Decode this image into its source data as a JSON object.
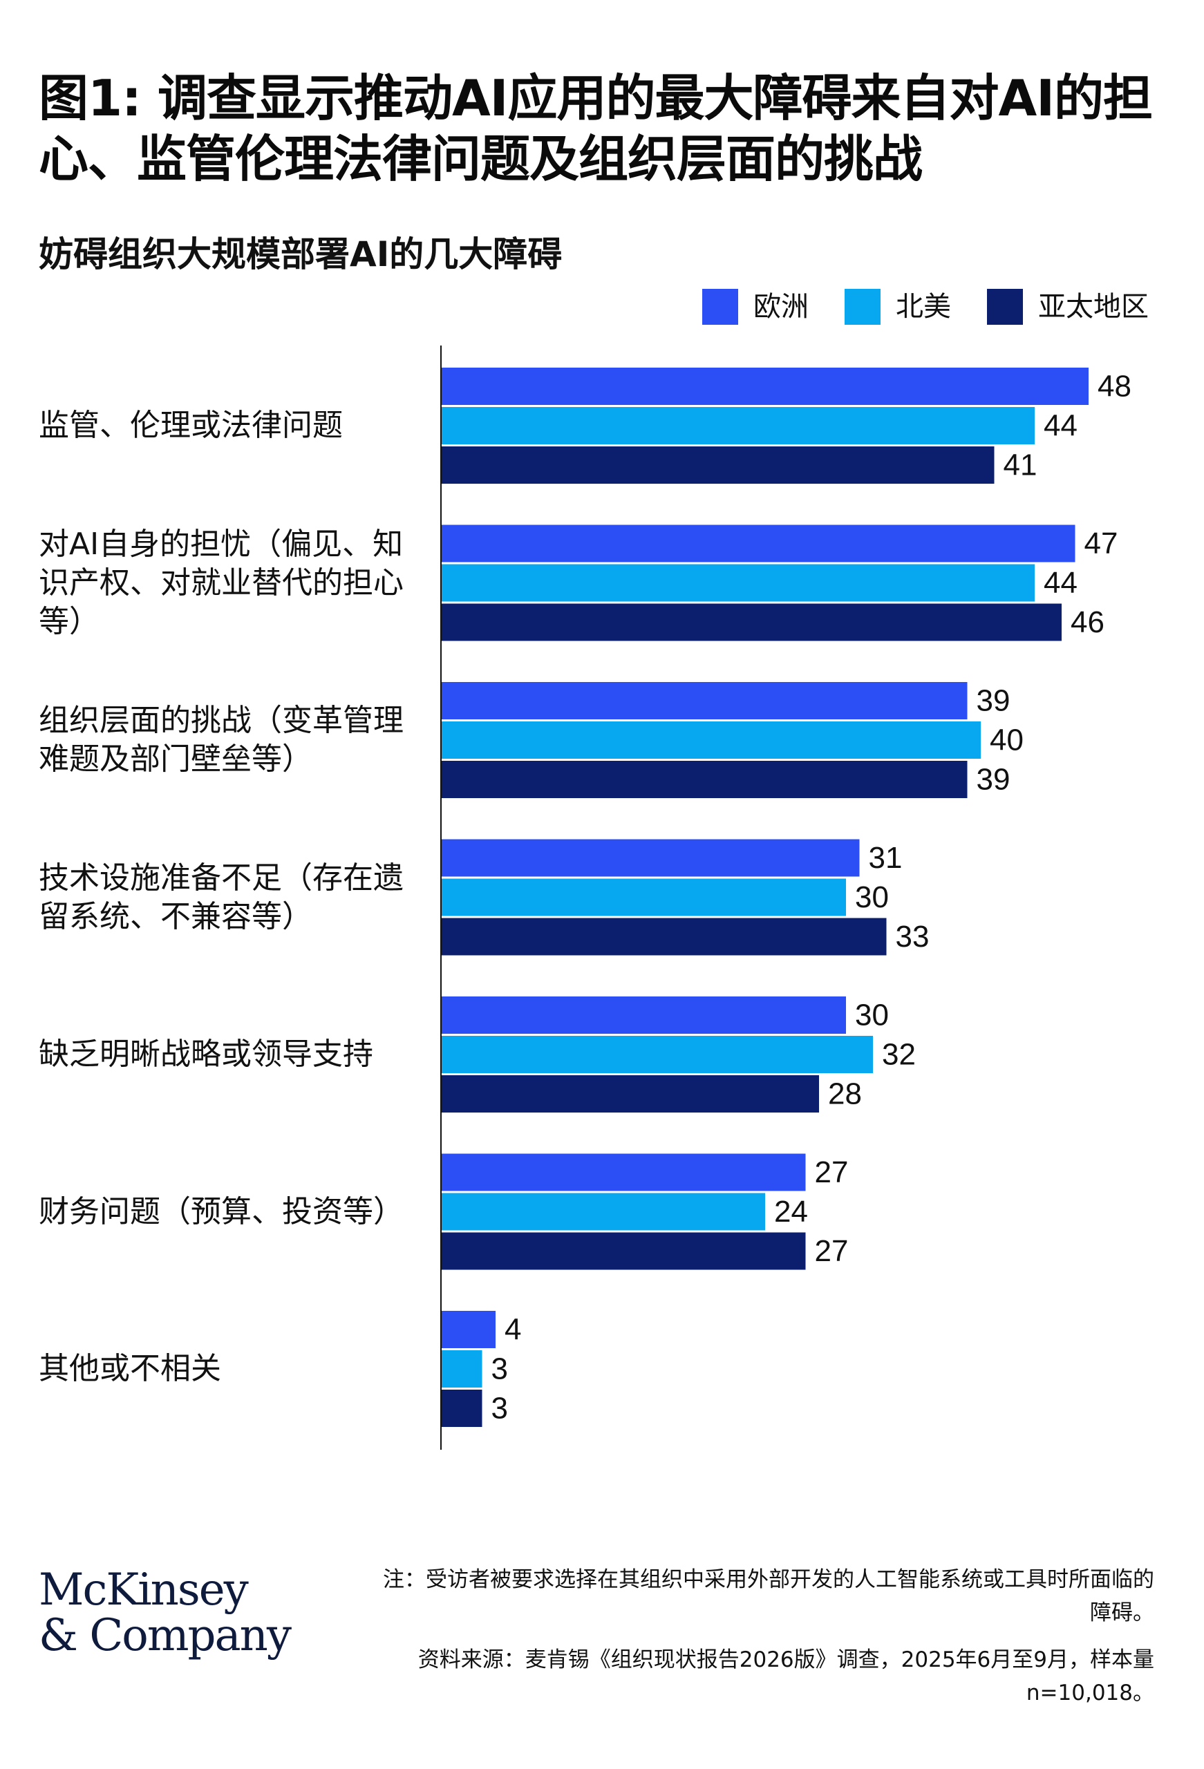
{
  "title": "图1: 调查显示推动AI应用的最大障碍来自对AI的担心、监管伦理法律问题及组织层面的挑战",
  "chart_data": {
    "type": "bar",
    "orientation": "horizontal",
    "title": "妨碍组织大规模部署AI的几大障碍",
    "categories": [
      "监管、伦理或法律问题",
      "对AI自身的担忧（偏见、知识产权、对就业替代的担心等）",
      "组织层面的挑战（变革管理难题及部门壁垒等）",
      "技术设施准备不足（存在遗留系统、不兼容等）",
      "缺乏明晰战略或领导支持",
      "财务问题（预算、投资等）",
      "其他或不相关"
    ],
    "series": [
      {
        "name": "欧洲",
        "color": "#2b4ff5",
        "values": [
          48,
          47,
          39,
          31,
          30,
          27,
          4
        ]
      },
      {
        "name": "北美",
        "color": "#07a8f0",
        "values": [
          44,
          44,
          40,
          30,
          32,
          24,
          3
        ]
      },
      {
        "name": "亚太地区",
        "color": "#0c1f6e",
        "values": [
          41,
          46,
          39,
          33,
          28,
          27,
          3
        ]
      }
    ],
    "xlim": [
      0,
      50
    ],
    "grid": false,
    "legend_position": "top-right",
    "data_labels": true
  },
  "footer": {
    "logo_line1": "McKinsey",
    "logo_line2": "& Company",
    "note": "注：受访者被要求选择在其组织中采用外部开发的人工智能系统或工具时所面临的障碍。",
    "source": "资料来源：麦肯锡《组织现状报告2026版》调查，2025年6月至9月，样本量n=10,018。"
  }
}
